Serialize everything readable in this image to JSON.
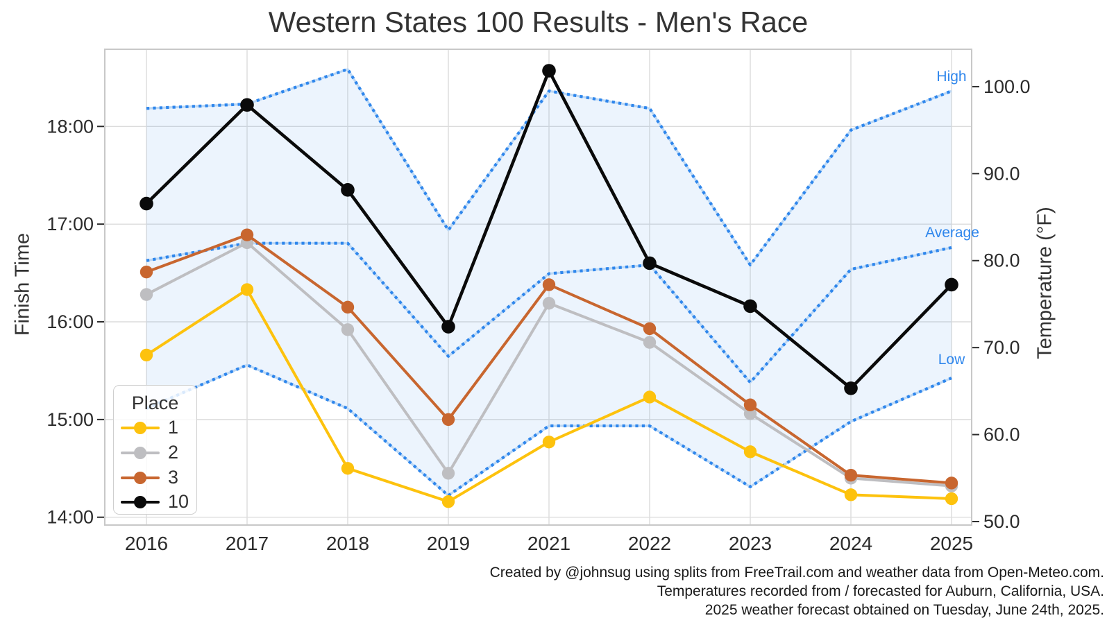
{
  "title": "Western States 100 Results - Men's Race",
  "axes": {
    "y_left_label": "Finish Time",
    "y_right_label": "Temperature (°F)",
    "y_left_tick_labels": [
      "14:00",
      "15:00",
      "16:00",
      "17:00",
      "18:00"
    ],
    "y_right_tick_labels": [
      "50.0",
      "60.0",
      "70.0",
      "80.0",
      "90.0",
      "100.0"
    ],
    "x_tick_labels": [
      "2016",
      "2017",
      "2018",
      "2019",
      "2021",
      "2022",
      "2023",
      "2024",
      "2025"
    ]
  },
  "legend": {
    "title": "Place",
    "entries": [
      "1",
      "2",
      "3",
      "10"
    ]
  },
  "annotations": {
    "high": "High",
    "average": "Average",
    "low": "Low"
  },
  "caption": {
    "line1": "Created by @johnsug using splits from FreeTrail.com and weather data from Open-Meteo.com.",
    "line2": "Temperatures recorded from / forecasted for Auburn, California, USA.",
    "line3": "2025 weather forecast obtained on Tuesday, June 24th, 2025."
  },
  "colors": {
    "place1": "#FDC20D",
    "place2": "#BEBEC1",
    "place3": "#C8662F",
    "place10": "#0A0A0A",
    "temp_dotted": "#2E86EC",
    "temp_underlay": "#BCD8F5",
    "band_fill": "#2E86EC",
    "grid": "#DCDCDC",
    "spine": "#C8C8C8",
    "tick_text": "#2B2B2B",
    "annotation_text": "#2E86EC"
  },
  "chart_data": {
    "type": "line",
    "title": "Western States 100 Results - Men's Race",
    "x": [
      "2016",
      "2017",
      "2018",
      "2019",
      "2021",
      "2022",
      "2023",
      "2024",
      "2025"
    ],
    "series": [
      {
        "name": "1",
        "axis": "time",
        "color_key": "place1",
        "values_hours": [
          15.66,
          16.33,
          14.5,
          14.16,
          14.77,
          15.23,
          14.67,
          14.23,
          14.19
        ]
      },
      {
        "name": "2",
        "axis": "time",
        "color_key": "place2",
        "values_hours": [
          16.28,
          16.81,
          15.92,
          14.45,
          16.19,
          15.79,
          15.06,
          14.4,
          14.32
        ]
      },
      {
        "name": "3",
        "axis": "time",
        "color_key": "place3",
        "values_hours": [
          16.51,
          16.89,
          16.15,
          15.0,
          16.38,
          15.93,
          15.15,
          14.43,
          14.35
        ]
      },
      {
        "name": "10",
        "axis": "time",
        "color_key": "place10",
        "values_hours": [
          17.21,
          18.22,
          17.35,
          15.95,
          18.57,
          16.6,
          16.16,
          15.32,
          16.38
        ]
      }
    ],
    "temperature_series": [
      {
        "name": "High",
        "values_f": [
          97.5,
          98.0,
          102.0,
          83.5,
          99.5,
          97.5,
          79.5,
          95.0,
          99.5
        ]
      },
      {
        "name": "Average",
        "values_f": [
          80.0,
          82.0,
          82.0,
          69.0,
          78.5,
          79.5,
          66.0,
          79.0,
          81.5
        ]
      },
      {
        "name": "Low",
        "values_f": [
          63.0,
          68.0,
          63.0,
          53.0,
          61.0,
          61.0,
          54.0,
          61.5,
          66.5
        ]
      }
    ],
    "band": "area filled between High and Low temperature lines",
    "time_axis": {
      "label": "Finish Time",
      "ticks_hours": [
        14,
        15,
        16,
        17,
        18
      ],
      "ylim_hours": [
        13.92,
        18.79
      ]
    },
    "temp_axis": {
      "label": "Temperature (°F)",
      "ticks_f": [
        50,
        60,
        70,
        80,
        90,
        100
      ],
      "ylim_f": [
        49.6,
        104.3
      ]
    },
    "grid": true,
    "legend_position": "lower left",
    "legend_title": "Place"
  }
}
